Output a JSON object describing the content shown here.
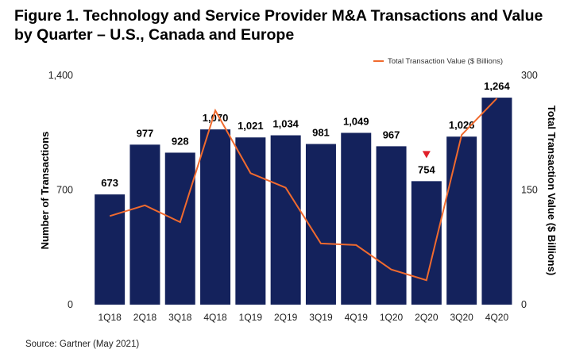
{
  "title_line1": "Figure 1. Technology and Service Provider M&A Transactions and Value",
  "title_line2": "by Quarter – U.S., Canada and Europe",
  "source": "Source: Gartner (May 2021)",
  "colors": {
    "bar": "#14225c",
    "line": "#f06a2e",
    "marker": "#e0202a"
  },
  "chart_data": {
    "type": "bar",
    "categories": [
      "1Q18",
      "2Q18",
      "3Q18",
      "4Q18",
      "1Q19",
      "2Q19",
      "3Q19",
      "4Q19",
      "1Q20",
      "2Q20",
      "3Q20",
      "4Q20"
    ],
    "series": [
      {
        "values": [
          673,
          977,
          928,
          1070,
          1021,
          1034,
          981,
          1049,
          967,
          754,
          1026,
          1264
        ],
        "axis": "left",
        "type": "bar"
      },
      {
        "name": "Total Transaction Value ($ Billions)",
        "values": [
          116,
          130,
          108,
          254,
          172,
          153,
          80,
          78,
          46,
          32,
          222,
          270
        ],
        "axis": "right",
        "type": "line"
      }
    ],
    "bar_labels": [
      "673",
      "977",
      "928",
      "1,070",
      "1,021",
      "1,034",
      "981",
      "1,049",
      "967",
      "754",
      "1,026",
      "1,264"
    ],
    "ylabel": "Number of Transactions",
    "y2label": "Total Transaction Value ($ Billions)",
    "ylim": [
      0,
      1400
    ],
    "y2lim": [
      0,
      300
    ],
    "yticks": [
      "0",
      "700",
      "1,400"
    ],
    "y2ticks": [
      "0",
      "150",
      "300"
    ],
    "marker_on": "2Q20",
    "legend_position": "top-right",
    "grid": false
  }
}
